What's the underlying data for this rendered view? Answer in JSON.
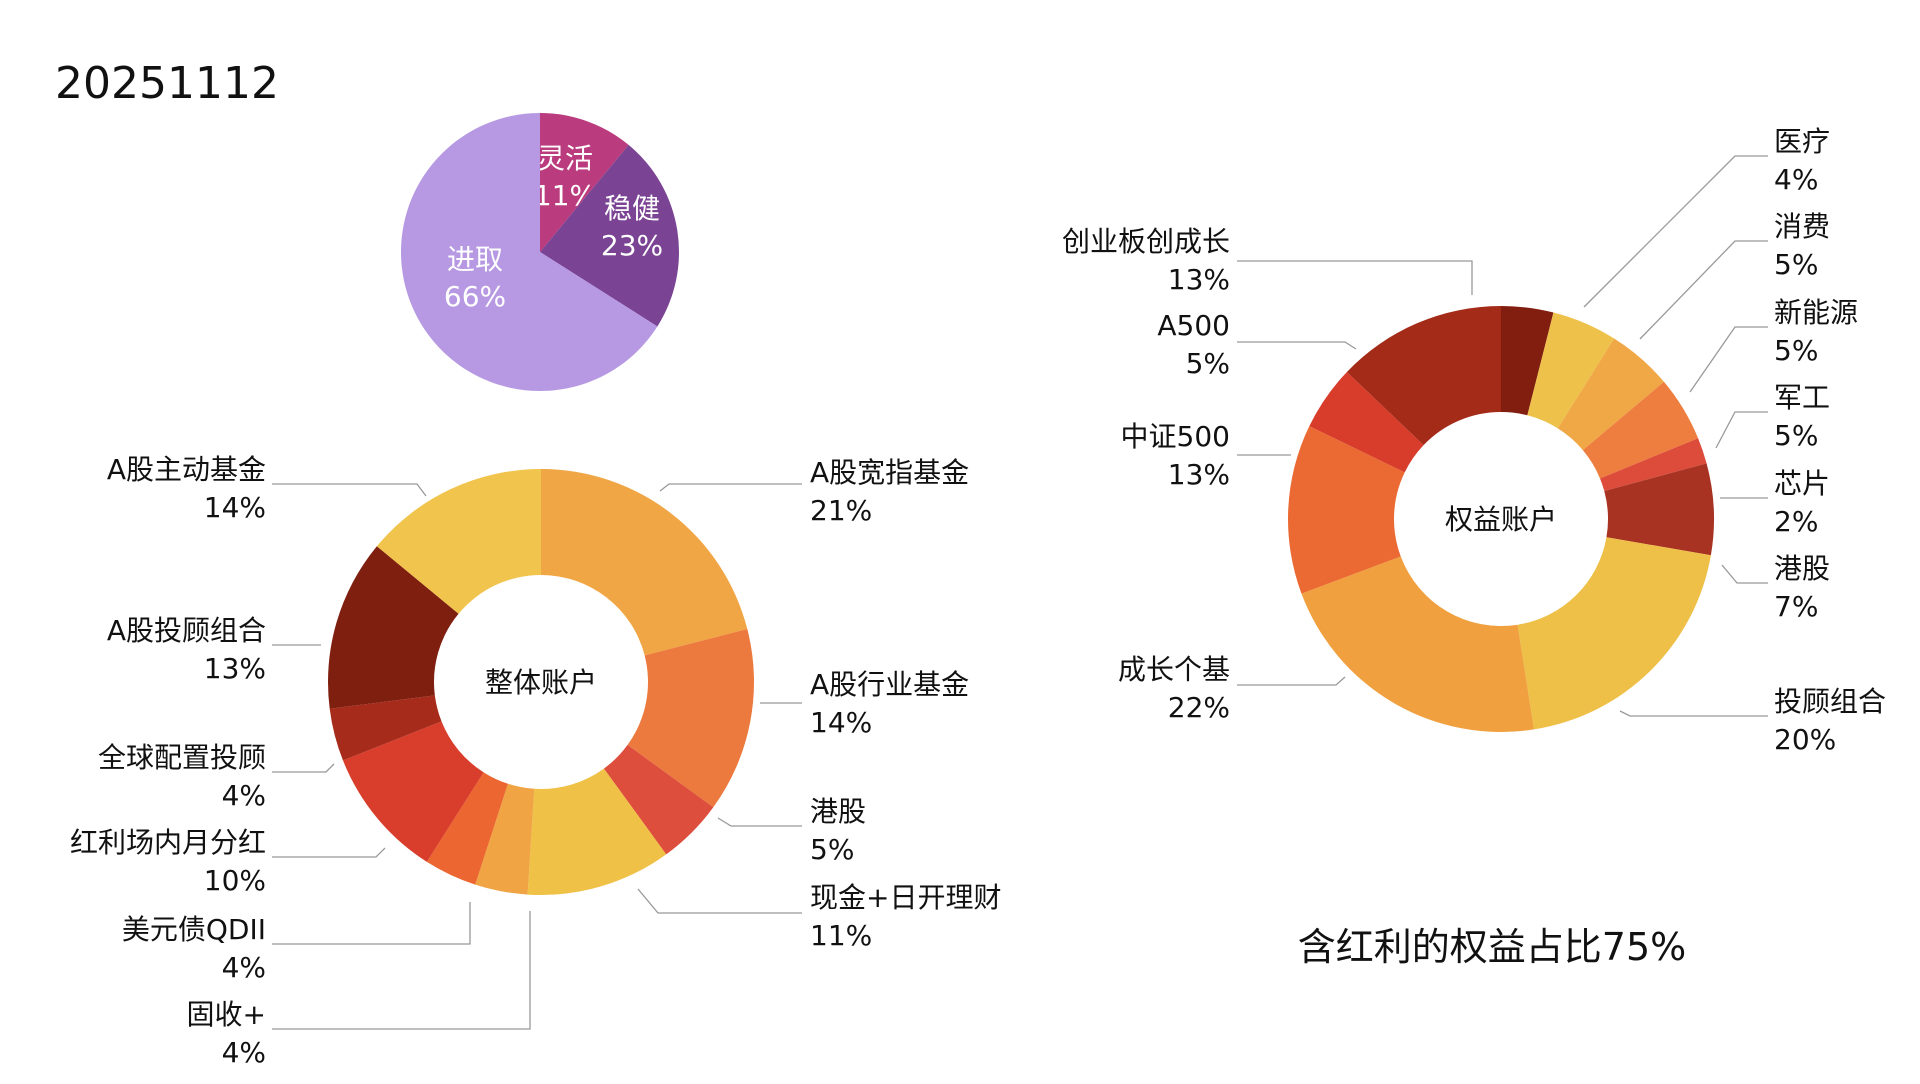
{
  "page": {
    "date": "20251112",
    "note": "含红利的权益占比75%"
  },
  "chart_data": [
    {
      "type": "pie",
      "donut": false,
      "slices": [
        {
          "name": "灵活",
          "label": "灵活",
          "pct_label": "11%",
          "value": 11,
          "color": "#BB3C7E"
        },
        {
          "name": "稳健",
          "label": "稳健",
          "pct_label": "23%",
          "value": 23,
          "color": "#7B4393"
        },
        {
          "name": "进取",
          "label": "进取",
          "pct_label": "66%",
          "value": 66,
          "color": "#B699E2"
        }
      ]
    },
    {
      "type": "pie",
      "donut": true,
      "center_label": "整体账户",
      "slices": [
        {
          "name": "A股宽指基金",
          "label": "A股宽指基金",
          "pct_label": "21%",
          "value": 21,
          "color": "#F0A644"
        },
        {
          "name": "A股行业基金",
          "label": "A股行业基金",
          "pct_label": "14%",
          "value": 14,
          "color": "#EC7A3E"
        },
        {
          "name": "港股",
          "label": "港股",
          "pct_label": "5%",
          "value": 5,
          "color": "#DD4E3C"
        },
        {
          "name": "现金+日开理财",
          "label": "现金+日开理财",
          "pct_label": "11%",
          "value": 11,
          "color": "#EFC146"
        },
        {
          "name": "固收+",
          "label": "固收+",
          "pct_label": "4%",
          "value": 4,
          "color": "#F0A443"
        },
        {
          "name": "美元债QDII",
          "label": "美元债QDII",
          "pct_label": "4%",
          "value": 4,
          "color": "#EB6630"
        },
        {
          "name": "红利场内月分红",
          "label": "红利场内月分红",
          "pct_label": "10%",
          "value": 10,
          "color": "#D93D2B"
        },
        {
          "name": "全球配置投顾",
          "label": "全球配置投顾",
          "pct_label": "4%",
          "value": 4,
          "color": "#A72B1A"
        },
        {
          "name": "A股投顾组合",
          "label": "A股投顾组合",
          "pct_label": "13%",
          "value": 13,
          "color": "#7F1F10"
        },
        {
          "name": "A股主动基金",
          "label": "A股主动基金",
          "pct_label": "14%",
          "value": 14,
          "color": "#F0C44D"
        }
      ]
    },
    {
      "type": "pie",
      "donut": true,
      "center_label": "权益账户",
      "slices": [
        {
          "name": "医疗",
          "label": "医疗",
          "pct_label": "4%",
          "value": 4,
          "color": "#821E10"
        },
        {
          "name": "消费",
          "label": "消费",
          "pct_label": "5%",
          "value": 5,
          "color": "#EEC24A"
        },
        {
          "name": "新能源",
          "label": "新能源",
          "pct_label": "5%",
          "value": 5,
          "color": "#F0A846"
        },
        {
          "name": "军工",
          "label": "军工",
          "pct_label": "5%",
          "value": 5,
          "color": "#ED7E3F"
        },
        {
          "name": "芯片",
          "label": "芯片",
          "pct_label": "2%",
          "value": 2,
          "color": "#DD4C3B"
        },
        {
          "name": "港股",
          "label": "港股",
          "pct_label": "7%",
          "value": 7,
          "color": "#A93323"
        },
        {
          "name": "投顾组合",
          "label": "投顾组合",
          "pct_label": "20%",
          "value": 20,
          "color": "#EEC047"
        },
        {
          "name": "成长个基",
          "label": "成长个基",
          "pct_label": "22%",
          "value": 22,
          "color": "#F0A03E"
        },
        {
          "name": "中证500",
          "label": "中证500",
          "pct_label": "13%",
          "value": 13,
          "color": "#EB6A33"
        },
        {
          "name": "A500",
          "label": "A500",
          "pct_label": "5%",
          "value": 5,
          "color": "#D73D2A"
        },
        {
          "name": "创业板创成长",
          "label": "创业板创成长",
          "pct_label": "13%",
          "value": 13,
          "color": "#A42B18"
        }
      ]
    }
  ]
}
